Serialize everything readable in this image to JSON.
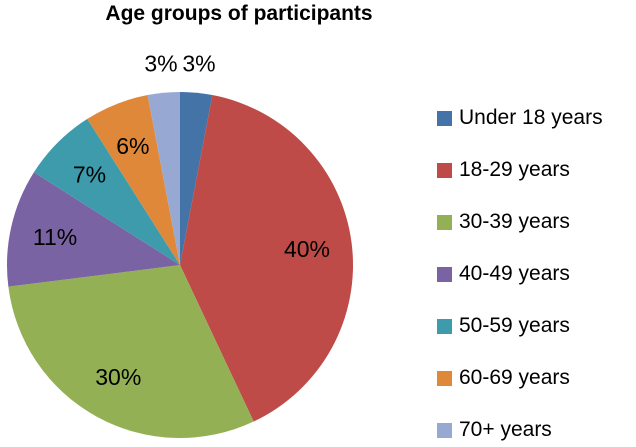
{
  "title": "Age groups of participants",
  "chart_data": {
    "type": "pie",
    "title": "Age groups of participants",
    "legend_position": "right",
    "start_angle_deg": 0,
    "direction": "clockwise",
    "data_labels": "percent",
    "slices": [
      {
        "label": "Under 18 years",
        "value": 3,
        "display": "3%",
        "color": "#4473A8",
        "label_placement": "outside"
      },
      {
        "label": "18-29 years",
        "value": 40,
        "display": "40%",
        "color": "#BE4B48",
        "label_placement": "inside"
      },
      {
        "label": "30-39 years",
        "value": 30,
        "display": "30%",
        "color": "#94B054",
        "label_placement": "inside"
      },
      {
        "label": "40-49 years",
        "value": 11,
        "display": "11%",
        "color": "#7A63A2",
        "label_placement": "inside"
      },
      {
        "label": "50-59 years",
        "value": 7,
        "display": "7%",
        "color": "#3D9BAC",
        "label_placement": "inside"
      },
      {
        "label": "60-69 years",
        "value": 6,
        "display": "6%",
        "color": "#E0883A",
        "label_placement": "inside"
      },
      {
        "label": "70+ years",
        "value": 3,
        "display": "3%",
        "color": "#97A9D2",
        "label_placement": "outside"
      }
    ]
  }
}
